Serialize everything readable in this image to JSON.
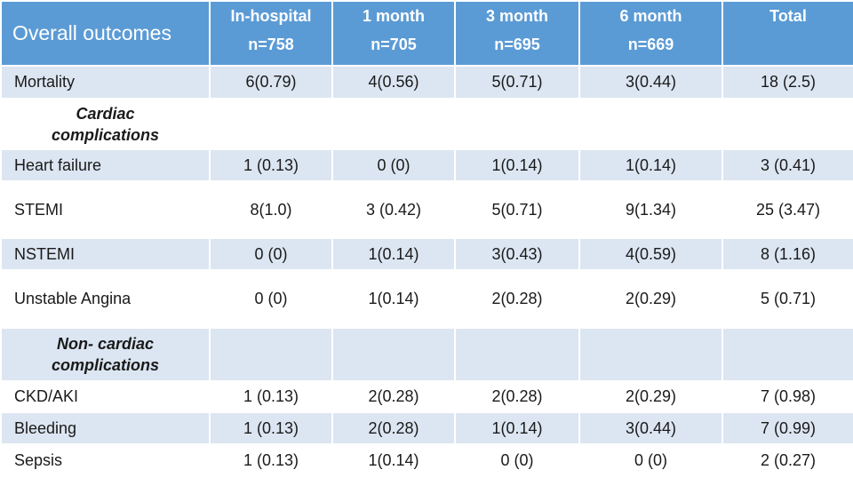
{
  "table": {
    "header": {
      "title": "Overall outcomes",
      "columns": [
        {
          "label": "In-hospital",
          "n": "n=758"
        },
        {
          "label": "1 month",
          "n": "n=705"
        },
        {
          "label": "3 month",
          "n": "n=695"
        },
        {
          "label": "6 month",
          "n": "n=669"
        },
        {
          "label": "Total",
          "n": null
        }
      ]
    },
    "rows": [
      {
        "label": "Mortality",
        "cells": [
          "6(0.79)",
          "4(0.56)",
          "5(0.71)",
          "3(0.44)",
          "18 (2.5)"
        ]
      },
      {
        "section": "Cardiac complications"
      },
      {
        "label": "Heart failure",
        "cells": [
          "1 (0.13)",
          "0 (0)",
          "1(0.14)",
          "1(0.14)",
          "3 (0.41)"
        ]
      },
      {
        "label": "STEMI",
        "cells": [
          "8(1.0)",
          "3 (0.42)",
          "5(0.71)",
          "9(1.34)",
          "25 (3.47)"
        ]
      },
      {
        "label": "NSTEMI",
        "cells": [
          "0 (0)",
          "1(0.14)",
          "3(0.43)",
          "4(0.59)",
          "8 (1.16)"
        ]
      },
      {
        "label": "Unstable Angina",
        "cells": [
          "0 (0)",
          "1(0.14)",
          "2(0.28)",
          "2(0.29)",
          "5 (0.71)"
        ]
      },
      {
        "section": "Non- cardiac complications"
      },
      {
        "label": "CKD/AKI",
        "cells": [
          "1 (0.13)",
          "2(0.28)",
          "2(0.28)",
          "2(0.29)",
          "7 (0.98)"
        ]
      },
      {
        "label": "Bleeding",
        "cells": [
          "1 (0.13)",
          "2(0.28)",
          "1(0.14)",
          "3(0.44)",
          "7 (0.99)"
        ]
      },
      {
        "label": "Sepsis",
        "cells": [
          "1 (0.13)",
          "1(0.14)",
          "0 (0)",
          "0 (0)",
          "2 (0.27)"
        ]
      }
    ]
  }
}
